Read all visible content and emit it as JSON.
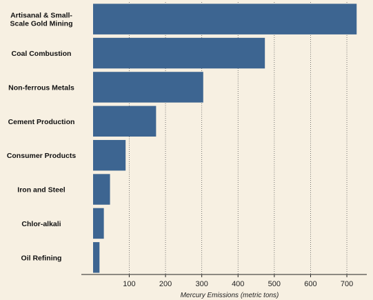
{
  "chart_data": {
    "type": "bar",
    "orientation": "horizontal",
    "categories": [
      "Artisanal & Small-Scale Gold Mining",
      "Coal Combustion",
      "Non-ferrous Metals",
      "Cement Production",
      "Consumer Products",
      "Iron and Steel",
      "Chlor-alkali",
      "Oil Refining"
    ],
    "category_lines": [
      [
        "Artisanal & Small-",
        "Scale Gold Mining"
      ],
      [
        "Coal Combustion"
      ],
      [
        "Non-ferrous Metals"
      ],
      [
        "Cement Production"
      ],
      [
        "Consumer Products"
      ],
      [
        "Iron and Steel"
      ],
      [
        "Chlor-alkali"
      ],
      [
        "Oil Refining"
      ]
    ],
    "values": [
      727,
      474,
      304,
      174,
      90,
      47,
      30,
      18
    ],
    "title": "",
    "xlabel": "Mercury Emissions (metric tons)",
    "ylabel": "",
    "xlim": [
      -32,
      755
    ],
    "xticks": [
      100,
      200,
      300,
      400,
      500,
      600,
      700
    ],
    "grid": "vertical-dotted",
    "legend": "none",
    "bar_color": "#3d6591",
    "background": "#f7f0e2"
  }
}
